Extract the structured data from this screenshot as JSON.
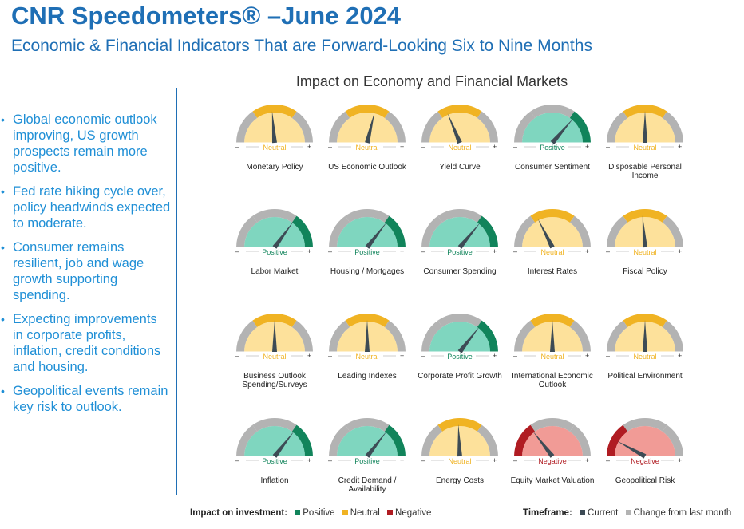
{
  "header": {
    "title": "CNR Speedometers® –June 2024",
    "subtitle": "Economic & Financial Indicators That are Forward-Looking Six to Nine Months"
  },
  "bullets": [
    "Global economic outlook improving, US growth prospects remain more positive.",
    "Fed rate hiking cycle over, policy headwinds expected to moderate.",
    "Consumer remains resilient, job and wage growth supporting spending.",
    "Expecting improvements in corporate profits, inflation, credit conditions and housing.",
    "Geopolitical events remain key risk to outlook."
  ],
  "bullet_marker": "•",
  "panel": {
    "title": "Impact on Economy and Financial Markets"
  },
  "gauge_minus": "–",
  "gauge_plus": "+",
  "colors": {
    "brand": "#1f6fb5",
    "bullet_text": "#1f8fd6",
    "positive_face": "#7fd6bf",
    "positive_accent": "#11845b",
    "neutral_face": "#fde19b",
    "neutral_accent": "#f0b323",
    "negative_face": "#f19b96",
    "negative_accent": "#b01c22",
    "gray_band": "#b3b3b3",
    "needle": "#3d4b55"
  },
  "gauges": [
    {
      "label": "Monetary Policy",
      "status": "Neutral",
      "needle": -0.05,
      "prev": "none"
    },
    {
      "label": "US Economic Outlook",
      "status": "Neutral",
      "needle": 0.15,
      "prev": "none"
    },
    {
      "label": "Yield Curve",
      "status": "Neutral",
      "needle": -0.25,
      "prev": "none"
    },
    {
      "label": "Consumer Sentiment",
      "status": "Positive",
      "needle": 0.45,
      "prev": "neutral"
    },
    {
      "label": "Disposable Personal Income",
      "status": "Neutral",
      "needle": 0.0,
      "prev": "none"
    },
    {
      "label": "Labor Market",
      "status": "Positive",
      "needle": 0.4,
      "prev": "none"
    },
    {
      "label": "Housing / Mortgages",
      "status": "Positive",
      "needle": 0.42,
      "prev": "none"
    },
    {
      "label": "Consumer Spending",
      "status": "Positive",
      "needle": 0.44,
      "prev": "none"
    },
    {
      "label": "Interest Rates",
      "status": "Neutral",
      "needle": -0.3,
      "prev": "none"
    },
    {
      "label": "Fiscal Policy",
      "status": "Neutral",
      "needle": -0.05,
      "prev": "none"
    },
    {
      "label": "Business Outlook Spending/Surveys",
      "status": "Neutral",
      "needle": 0.0,
      "prev": "none"
    },
    {
      "label": "Leading Indexes",
      "status": "Neutral",
      "needle": 0.0,
      "prev": "none"
    },
    {
      "label": "Corporate Profit Growth",
      "status": "Positive",
      "needle": 0.42,
      "prev": "neutral"
    },
    {
      "label": "International Economic Outlook",
      "status": "Neutral",
      "needle": 0.0,
      "prev": "none"
    },
    {
      "label": "Political Environment",
      "status": "Neutral",
      "needle": 0.0,
      "prev": "none"
    },
    {
      "label": "Inflation",
      "status": "Positive",
      "needle": 0.42,
      "prev": "none"
    },
    {
      "label": "Credit Demand / Availability",
      "status": "Positive",
      "needle": 0.42,
      "prev": "none"
    },
    {
      "label": "Energy Costs",
      "status": "Neutral",
      "needle": -0.03,
      "prev": "none"
    },
    {
      "label": "Equity Market Valuation",
      "status": "Negative",
      "needle": -0.42,
      "prev": "none"
    },
    {
      "label": "Geopolitical Risk",
      "status": "Negative",
      "needle": -0.68,
      "prev": "none"
    }
  ],
  "legend": {
    "impact_label": "Impact on investment:",
    "positive": "Positive",
    "neutral": "Neutral",
    "negative": "Negative",
    "timeframe_label": "Timeframe:",
    "current": "Current",
    "change": "Change from last month",
    "current_color": "#3d4b55",
    "change_color": "#b3b3b3"
  }
}
